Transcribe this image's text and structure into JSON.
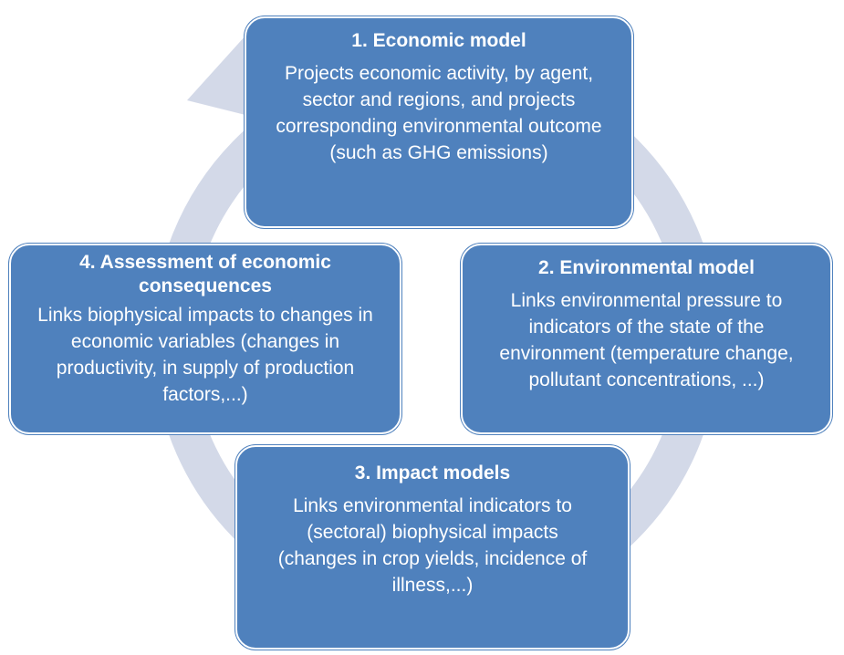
{
  "nodes": [
    {
      "title": "1. Economic model",
      "text": "Projects economic activity, by agent, sector and regions, and projects corresponding environmental outcome (such as GHG emissions)"
    },
    {
      "title": "2. Environmental model",
      "text": "Links environmental pressure to indicators of the state of the environment (temperature change, pollutant concentrations, ...)"
    },
    {
      "title": "3. Impact models",
      "text": "Links environmental indicators to (sectoral) biophysical impacts (changes in crop yields, incidence of illness,...)"
    },
    {
      "title": "4. Assessment of economic consequences",
      "text": "Links biophysical impacts to changes in economic variables (changes in productivity, in supply of production factors,...)"
    }
  ]
}
